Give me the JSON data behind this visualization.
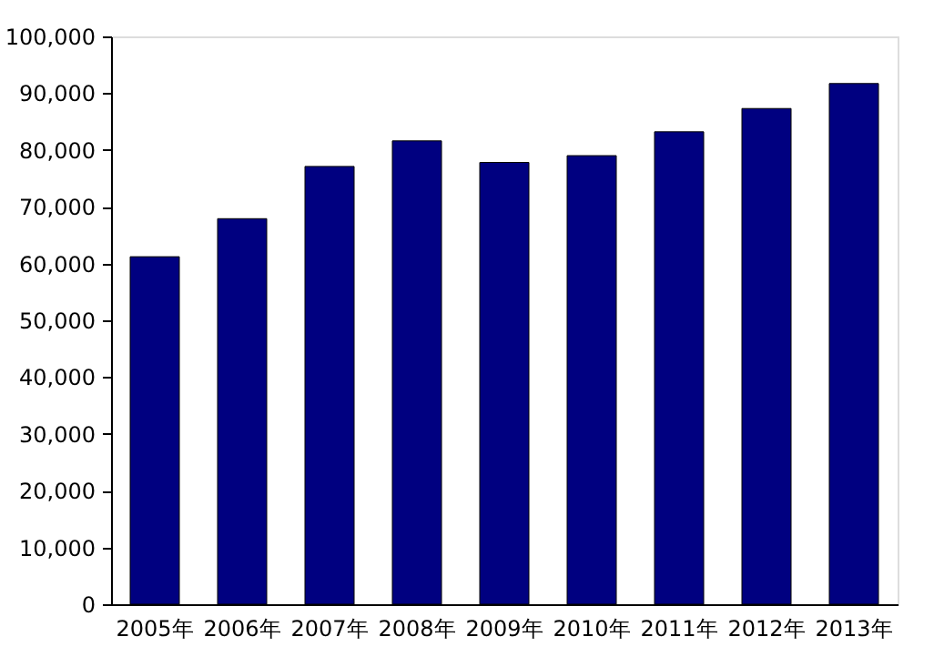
{
  "chart_data": {
    "type": "bar",
    "categories": [
      "2005年",
      "2006年",
      "2007年",
      "2008年",
      "2009年",
      "2010年",
      "2011年",
      "2012年",
      "2013年"
    ],
    "values": [
      61200,
      67900,
      77100,
      81600,
      77800,
      79000,
      83200,
      87300,
      91700
    ],
    "color": "#000080",
    "ylim": [
      0,
      100000
    ],
    "yticks": [
      {
        "value": 0,
        "label": "0"
      },
      {
        "value": 10000,
        "label": "10,000"
      },
      {
        "value": 20000,
        "label": "20,000"
      },
      {
        "value": 30000,
        "label": "30,000"
      },
      {
        "value": 40000,
        "label": "40,000"
      },
      {
        "value": 50000,
        "label": "50,000"
      },
      {
        "value": 60000,
        "label": "60,000"
      },
      {
        "value": 70000,
        "label": "70,000"
      },
      {
        "value": 80000,
        "label": "80,000"
      },
      {
        "value": 90000,
        "label": "90,000"
      },
      {
        "value": 100000,
        "label": "100,000"
      }
    ],
    "grid": false
  }
}
